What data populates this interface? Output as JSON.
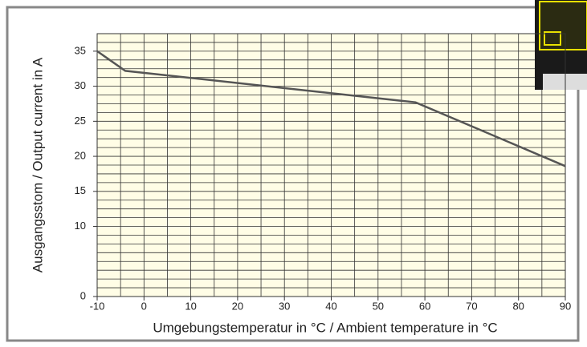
{
  "chart_data": {
    "type": "line",
    "x_label": "Umgebungstemperatur in °C  /  Ambient temperature  in °C",
    "y_label": "Ausgangsstom / Output current in A",
    "x": [
      -10,
      -4,
      58,
      90
    ],
    "series": [
      {
        "color": "#555555",
        "values": [
          35,
          32.2,
          27.7,
          18.6
        ]
      }
    ],
    "xlim": [
      -10,
      90
    ],
    "xticks": [
      -10,
      0,
      10,
      20,
      30,
      40,
      50,
      60,
      70,
      80,
      90
    ],
    "ylim": [
      0,
      37.5
    ],
    "yticks": [
      0,
      10,
      15,
      20,
      25,
      30,
      35
    ],
    "grid": true
  }
}
